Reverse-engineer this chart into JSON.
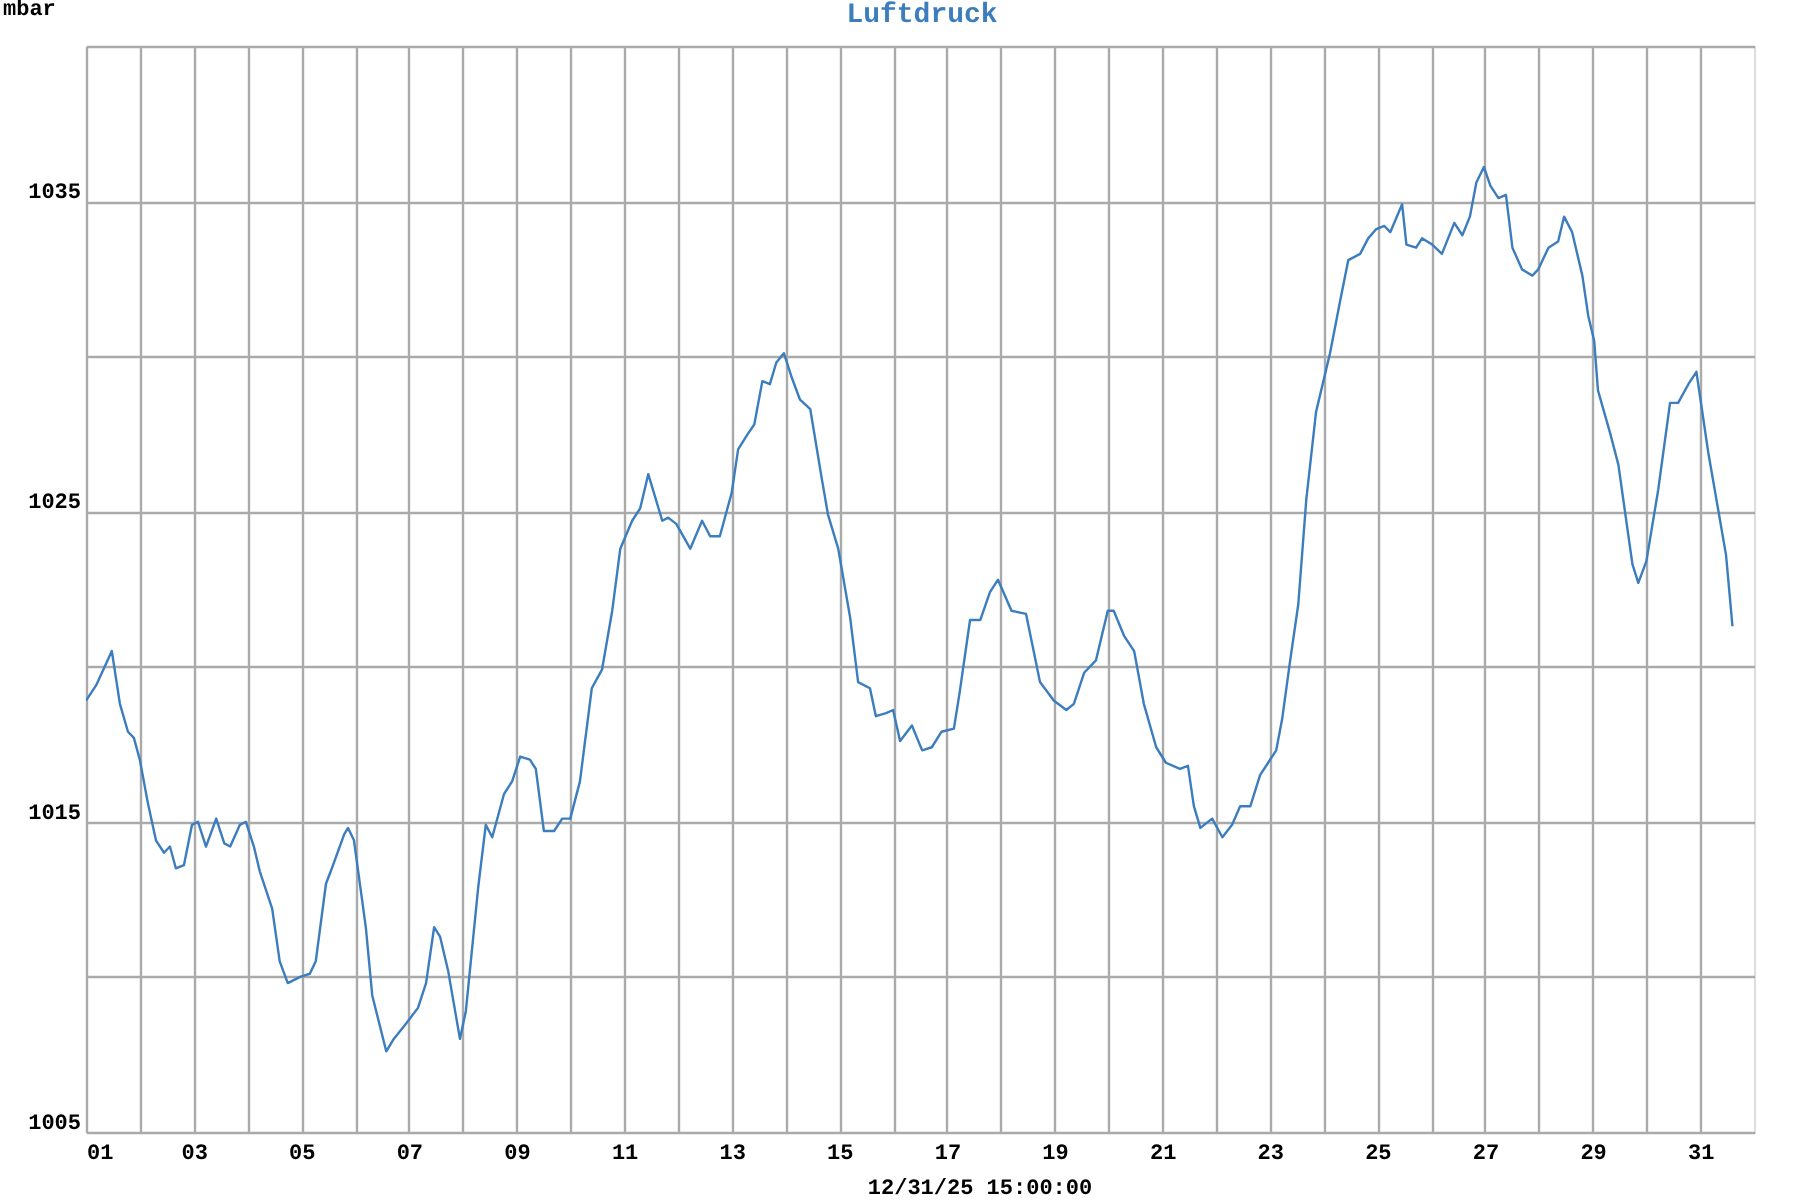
{
  "chart_data": {
    "type": "line",
    "title": "Luftdruck",
    "ylabel": "mbar",
    "annotations": [
      "12/31/25 15:00:00"
    ],
    "xlim": [
      1,
      32
    ],
    "ylim": [
      1005,
      1040
    ],
    "xticks": [
      {
        "value": 1,
        "label": "01"
      },
      {
        "value": 2,
        "label": null
      },
      {
        "value": 3,
        "label": "03"
      },
      {
        "value": 4,
        "label": null
      },
      {
        "value": 5,
        "label": "05"
      },
      {
        "value": 6,
        "label": null
      },
      {
        "value": 7,
        "label": "07"
      },
      {
        "value": 8,
        "label": null
      },
      {
        "value": 9,
        "label": "09"
      },
      {
        "value": 10,
        "label": null
      },
      {
        "value": 11,
        "label": "11"
      },
      {
        "value": 12,
        "label": null
      },
      {
        "value": 13,
        "label": "13"
      },
      {
        "value": 14,
        "label": null
      },
      {
        "value": 15,
        "label": "15"
      },
      {
        "value": 16,
        "label": null
      },
      {
        "value": 17,
        "label": "17"
      },
      {
        "value": 18,
        "label": null
      },
      {
        "value": 19,
        "label": "19"
      },
      {
        "value": 20,
        "label": null
      },
      {
        "value": 21,
        "label": "21"
      },
      {
        "value": 22,
        "label": null
      },
      {
        "value": 23,
        "label": "23"
      },
      {
        "value": 24,
        "label": null
      },
      {
        "value": 25,
        "label": "25"
      },
      {
        "value": 26,
        "label": null
      },
      {
        "value": 27,
        "label": "27"
      },
      {
        "value": 28,
        "label": null
      },
      {
        "value": 29,
        "label": "29"
      },
      {
        "value": 30,
        "label": null
      },
      {
        "value": 31,
        "label": "31"
      }
    ],
    "yticks": [
      1005,
      {
        "value": 1010,
        "label": null
      },
      1015,
      {
        "value": 1020,
        "label": null
      },
      1025,
      {
        "value": 1030,
        "label": null
      },
      1035,
      {
        "value": 1040,
        "label": null
      }
    ],
    "grid": true,
    "marker": "none",
    "line_style": "solid",
    "series": [
      {
        "color": "#3b7dbd",
        "x": [
          1,
          1.19,
          1.48,
          1.63,
          1.78,
          1.89,
          2.0,
          2.15,
          2.3,
          2.45,
          2.56,
          2.67,
          2.82,
          2.97,
          3.08,
          3.23,
          3.42,
          3.57,
          3.68,
          3.86,
          3.97,
          4.12,
          4.23,
          4.46,
          4.6,
          4.75,
          4.98,
          5.16,
          5.27,
          5.46,
          5.57,
          5.8,
          5.87,
          5.98,
          6.2,
          6.32,
          6.58,
          6.72,
          6.95,
          7.17,
          7.32,
          7.47,
          7.58,
          7.73,
          7.95,
          8.06,
          8.29,
          8.43,
          8.55,
          8.77,
          8.92,
          9.07,
          9.25,
          9.36,
          9.51,
          9.7,
          9.85,
          10.0,
          10.18,
          10.4,
          10.59,
          10.78,
          10.93,
          11.15,
          11.3,
          11.45,
          11.71,
          11.82,
          11.97,
          12.23,
          12.45,
          12.6,
          12.78,
          13.0,
          13.12,
          13.3,
          13.42,
          13.57,
          13.71,
          13.83,
          13.97,
          14.12,
          14.27,
          14.46,
          14.68,
          14.79,
          14.98,
          15.2,
          15.35,
          15.57,
          15.68,
          15.87,
          16.0,
          16.13,
          16.35,
          16.54,
          16.72,
          16.9,
          17.13,
          17.24,
          17.43,
          17.62,
          17.8,
          17.95,
          18.2,
          18.47,
          18.73,
          18.99,
          19.22,
          19.36,
          19.55,
          19.77,
          19.99,
          20.1,
          20.29,
          20.48,
          20.66,
          20.89,
          21.07,
          21.33,
          21.48,
          21.59,
          21.71,
          21.93,
          22.12,
          22.3,
          22.45,
          22.64,
          22.82,
          22.97,
          23.12,
          23.23,
          23.38,
          23.53,
          23.68,
          23.86,
          24.12,
          24.31,
          24.46,
          24.68,
          24.83,
          24.98,
          25.13,
          25.24,
          25.46,
          25.54,
          25.72,
          25.83,
          26.02,
          26.2,
          26.43,
          26.58,
          26.72,
          26.84,
          26.98,
          27.1,
          27.25,
          27.39,
          27.51,
          27.69,
          27.88,
          27.99,
          28.18,
          28.36,
          28.47,
          28.62,
          28.81,
          28.92,
          29.03,
          29.1,
          29.33,
          29.48,
          29.74,
          29.85,
          30.0,
          30.22,
          30.44,
          30.59,
          30.78,
          30.93,
          31.15,
          31.37,
          31.48,
          31.6
        ],
        "values": [
          1018.9,
          1019.4,
          1020.5,
          1018.8,
          1017.9,
          1017.7,
          1017.0,
          1015.6,
          1014.4,
          1014.0,
          1014.2,
          1013.5,
          1013.6,
          1014.9,
          1015.0,
          1014.2,
          1015.1,
          1014.3,
          1014.2,
          1014.9,
          1015.0,
          1014.2,
          1013.4,
          1012.2,
          1010.5,
          1009.8,
          1010.0,
          1010.1,
          1010.5,
          1013.0,
          1013.5,
          1014.6,
          1014.8,
          1014.4,
          1011.6,
          1009.4,
          1007.6,
          1008.0,
          1008.5,
          1009.0,
          1009.8,
          1011.6,
          1011.3,
          1010.2,
          1008.0,
          1008.9,
          1012.9,
          1014.9,
          1014.5,
          1015.9,
          1016.3,
          1017.1,
          1017.0,
          1016.7,
          1014.7,
          1014.7,
          1015.1,
          1015.1,
          1016.3,
          1019.3,
          1019.9,
          1021.8,
          1023.8,
          1024.7,
          1025.1,
          1026.2,
          1024.7,
          1024.8,
          1024.6,
          1023.8,
          1024.7,
          1024.2,
          1024.2,
          1025.6,
          1027.0,
          1027.5,
          1027.8,
          1029.2,
          1029.1,
          1029.8,
          1030.1,
          1029.3,
          1028.6,
          1028.3,
          1026.0,
          1024.9,
          1023.8,
          1021.6,
          1019.5,
          1019.3,
          1018.4,
          1018.5,
          1018.6,
          1017.6,
          1018.1,
          1017.3,
          1017.4,
          1017.9,
          1018.0,
          1019.2,
          1021.5,
          1021.5,
          1022.4,
          1022.8,
          1021.8,
          1021.7,
          1019.5,
          1018.9,
          1018.6,
          1018.8,
          1019.8,
          1020.2,
          1021.8,
          1021.8,
          1021.0,
          1020.5,
          1018.8,
          1017.4,
          1016.9,
          1016.7,
          1016.8,
          1015.5,
          1014.8,
          1015.1,
          1014.5,
          1014.9,
          1015.5,
          1015.5,
          1016.5,
          1016.9,
          1017.3,
          1018.3,
          1020.2,
          1022.0,
          1025.4,
          1028.2,
          1030.1,
          1031.8,
          1033.1,
          1033.3,
          1033.8,
          1034.1,
          1034.2,
          1034.0,
          1034.9,
          1033.6,
          1033.5,
          1033.8,
          1033.6,
          1033.3,
          1034.3,
          1033.9,
          1034.5,
          1035.6,
          1036.1,
          1035.5,
          1035.1,
          1035.2,
          1033.5,
          1032.8,
          1032.6,
          1032.8,
          1033.5,
          1033.7,
          1034.5,
          1034.0,
          1032.6,
          1031.3,
          1030.5,
          1028.9,
          1027.5,
          1026.5,
          1023.3,
          1022.7,
          1023.4,
          1025.7,
          1028.5,
          1028.5,
          1029.1,
          1029.5,
          1026.9,
          1024.7,
          1023.6,
          1021.3
        ]
      }
    ]
  }
}
